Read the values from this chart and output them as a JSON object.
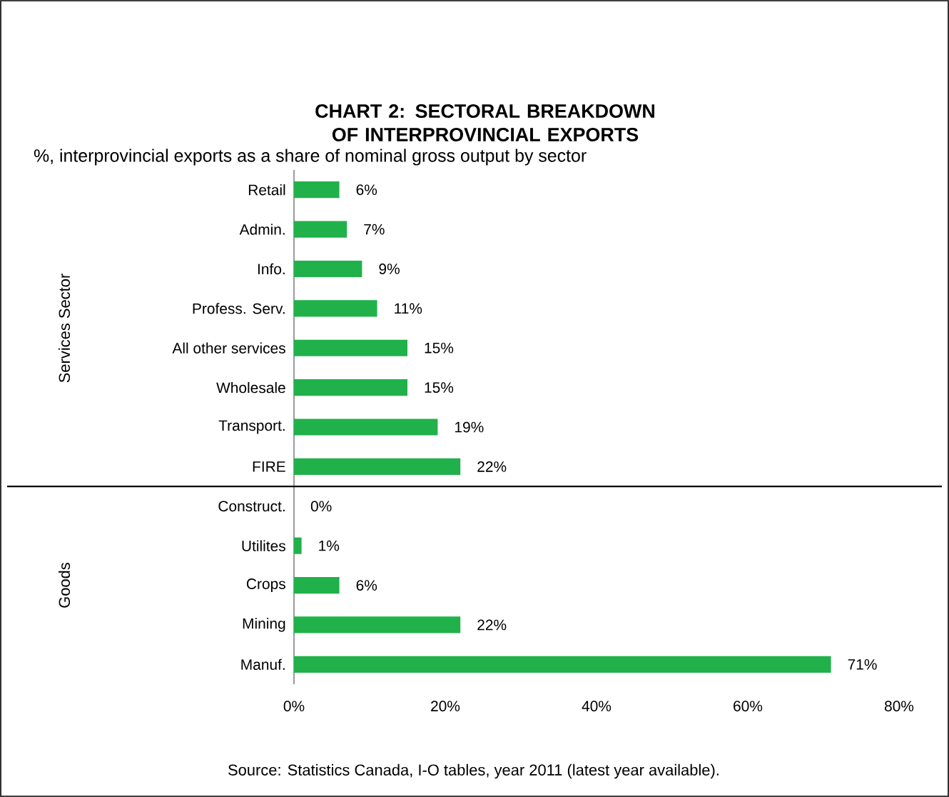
{
  "chart_data": {
    "type": "bar",
    "orientation": "horizontal",
    "title": "CHART 2: SECTORAL BREAKDOWN OF INTERPROVINCIAL EXPORTS",
    "subtitle": "%, interprovincial exports as a share of nominal gross output by sector",
    "categories": [
      "Retail",
      "Admin.",
      "Info.",
      "Profess. Serv.",
      "All other services",
      "Wholesale",
      "Transport.",
      "FIRE",
      "Construct.",
      "Utilites",
      "Crops",
      "Mining",
      "Manuf."
    ],
    "values": [
      6,
      7,
      9,
      11,
      15,
      15,
      19,
      22,
      0,
      1,
      6,
      22,
      71
    ],
    "value_labels": [
      "6%",
      "7%",
      "9%",
      "11%",
      "15%",
      "15%",
      "19%",
      "22%",
      "0%",
      "1%",
      "6%",
      "22%",
      "71%"
    ],
    "color": "#21b14b",
    "xlim": [
      0,
      80
    ],
    "xticks": [
      {
        "value": 0,
        "label": "0%"
      },
      {
        "value": 20,
        "label": "20%"
      },
      {
        "value": 40,
        "label": "40%"
      },
      {
        "value": 60,
        "label": "60%"
      },
      {
        "value": 80,
        "label": "80%"
      }
    ],
    "annotations": [
      "Services Sector",
      "Goods",
      "Source: Statistics Canada, I-O tables, year 2011 (latest year available)."
    ]
  }
}
